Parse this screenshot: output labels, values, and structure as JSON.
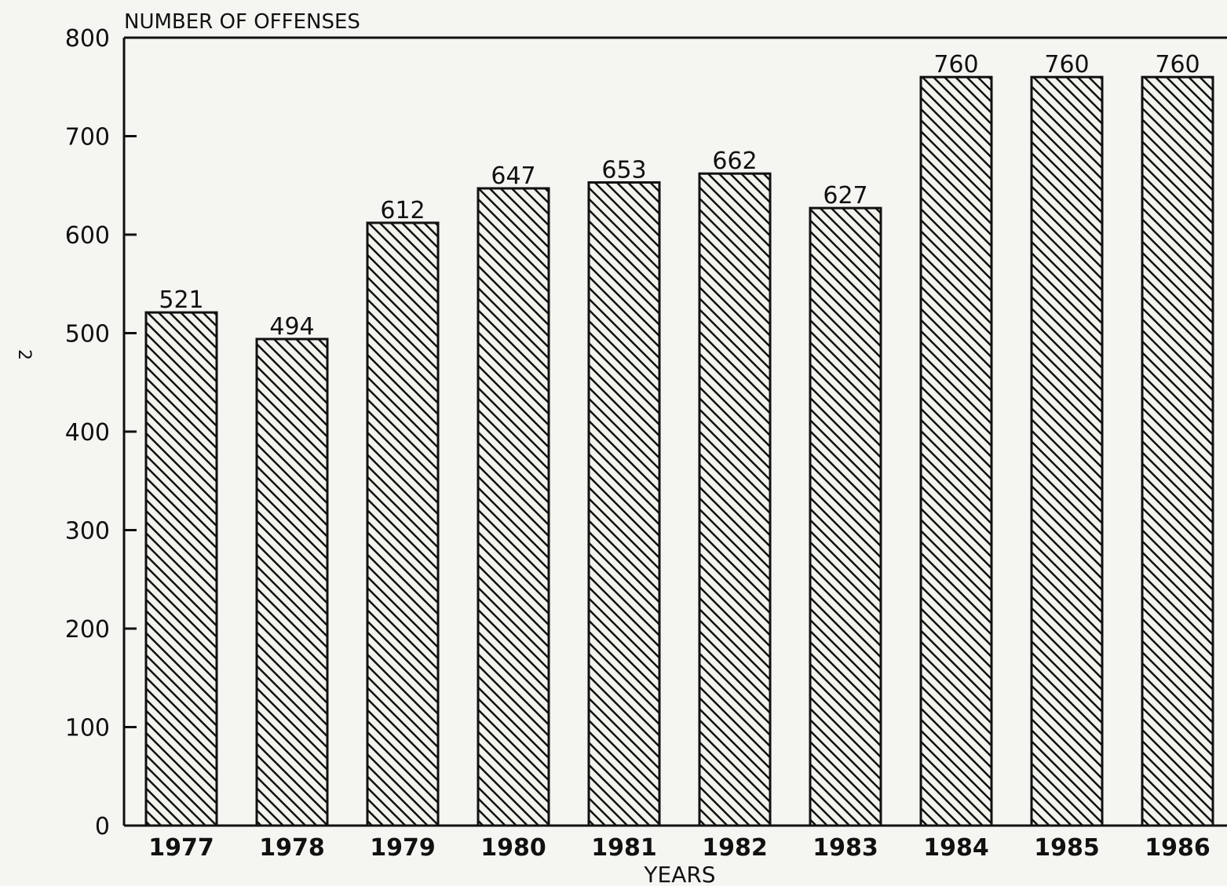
{
  "page_number": "2",
  "chart_data": {
    "type": "bar",
    "title": "",
    "ylabel": "NUMBER OF OFFENSES",
    "xlabel": "YEARS",
    "categories": [
      "1977",
      "1978",
      "1979",
      "1980",
      "1981",
      "1982",
      "1983",
      "1984",
      "1985",
      "1986"
    ],
    "values": [
      521,
      494,
      612,
      647,
      653,
      662,
      627,
      760,
      760,
      760
    ],
    "data_labels": [
      "521",
      "494",
      "612",
      "647",
      "653",
      "662",
      "627",
      "760",
      "760",
      "760"
    ],
    "ylim": [
      0,
      800
    ],
    "yticks": [
      0,
      100,
      200,
      300,
      400,
      500,
      600,
      700,
      800
    ],
    "ytick_labels": [
      "0",
      "100",
      "200",
      "300",
      "400",
      "500",
      "600",
      "700",
      "800"
    ],
    "grid": false,
    "legend": "none",
    "bar_fill": "diagonal hatch",
    "colors": {
      "bar_stroke": "#111111",
      "hatch": "#111111",
      "background": "#f5f5f1"
    }
  }
}
